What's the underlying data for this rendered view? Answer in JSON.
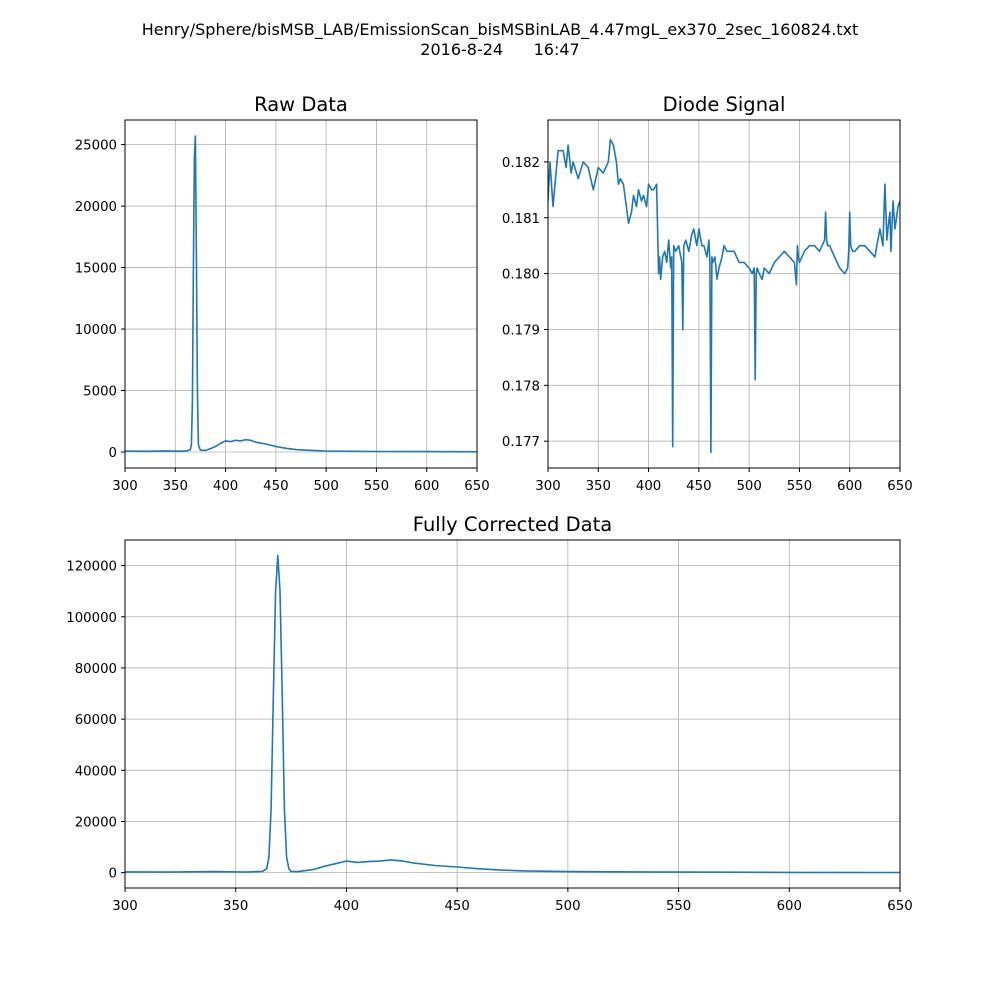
{
  "figure": {
    "title_line1": "Henry/Sphere/bisMSB_LAB/EmissionScan_bisMSBinLAB_4.47mgL_ex370_2sec_160824.txt",
    "title_line2": "2016-8-24      16:47"
  },
  "colors": {
    "line": "#1f77b4",
    "grid": "#b0b0b0"
  },
  "chart_data": [
    {
      "id": "raw",
      "type": "line",
      "title": "Raw Data",
      "xlabel": "",
      "ylabel": "",
      "xlim": [
        300,
        650
      ],
      "ylim": [
        -1300,
        27000
      ],
      "xticks": [
        300,
        350,
        400,
        450,
        500,
        550,
        600,
        650
      ],
      "yticks": [
        0,
        5000,
        10000,
        15000,
        20000,
        25000
      ],
      "grid": true,
      "series": [
        {
          "x": [
            300,
            320,
            340,
            355,
            362,
            365,
            366,
            367,
            368,
            369,
            370,
            371,
            372,
            373,
            375,
            380,
            385,
            390,
            395,
            400,
            405,
            410,
            415,
            420,
            425,
            430,
            440,
            450,
            460,
            470,
            480,
            500,
            550,
            600,
            650
          ],
          "y": [
            80,
            60,
            90,
            70,
            100,
            200,
            600,
            4000,
            15000,
            24000,
            25700,
            16000,
            5000,
            600,
            150,
            130,
            280,
            450,
            700,
            900,
            850,
            950,
            900,
            1000,
            950,
            800,
            650,
            450,
            300,
            200,
            150,
            80,
            40,
            30,
            20
          ]
        }
      ]
    },
    {
      "id": "diode",
      "type": "line",
      "title": "Diode Signal",
      "xlabel": "",
      "ylabel": "",
      "xlim": [
        300,
        650
      ],
      "ylim": [
        0.17652,
        0.18275
      ],
      "xticks": [
        300,
        350,
        400,
        450,
        500,
        550,
        600,
        650
      ],
      "yticks": [
        0.177,
        0.178,
        0.179,
        0.18,
        0.181,
        0.182
      ],
      "grid": true,
      "series": [
        {
          "x": [
            300,
            302,
            305,
            308,
            310,
            315,
            318,
            320,
            323,
            325,
            330,
            335,
            340,
            345,
            350,
            355,
            360,
            362,
            365,
            368,
            370,
            372,
            375,
            378,
            380,
            383,
            385,
            388,
            390,
            393,
            395,
            398,
            400,
            403,
            405,
            408,
            410,
            411,
            412,
            414,
            416,
            418,
            420,
            422,
            423,
            424,
            425,
            427,
            430,
            433,
            434,
            435,
            437,
            440,
            443,
            445,
            448,
            450,
            453,
            455,
            458,
            460,
            461,
            462,
            463,
            464,
            466,
            468,
            470,
            473,
            475,
            478,
            480,
            485,
            490,
            495,
            500,
            503,
            505,
            506,
            507,
            508,
            510,
            513,
            515,
            520,
            525,
            530,
            535,
            540,
            545,
            547,
            548,
            549,
            550,
            555,
            560,
            565,
            570,
            575,
            576,
            577,
            578,
            580,
            585,
            590,
            595,
            598,
            599,
            600,
            601,
            603,
            605,
            610,
            615,
            620,
            625,
            630,
            633,
            635,
            637,
            638,
            640,
            641,
            643,
            645,
            648,
            650
          ],
          "y": [
            0.1813,
            0.182,
            0.1812,
            0.1818,
            0.1822,
            0.1822,
            0.1819,
            0.1823,
            0.1818,
            0.182,
            0.1817,
            0.182,
            0.1819,
            0.1815,
            0.1819,
            0.1818,
            0.182,
            0.1824,
            0.1823,
            0.182,
            0.1816,
            0.1817,
            0.1816,
            0.1812,
            0.1809,
            0.1811,
            0.1814,
            0.1812,
            0.1815,
            0.1813,
            0.1814,
            0.1812,
            0.1816,
            0.1815,
            0.1815,
            0.1816,
            0.18,
            0.1803,
            0.1799,
            0.1803,
            0.1804,
            0.1802,
            0.1806,
            0.1801,
            0.1803,
            0.1769,
            0.1805,
            0.1804,
            0.1805,
            0.1802,
            0.179,
            0.1805,
            0.1806,
            0.1804,
            0.1807,
            0.1808,
            0.1805,
            0.1808,
            0.1805,
            0.1805,
            0.1803,
            0.1806,
            0.1802,
            0.1768,
            0.1803,
            0.1802,
            0.1803,
            0.1799,
            0.1801,
            0.1803,
            0.1805,
            0.1804,
            0.1804,
            0.1804,
            0.1802,
            0.1802,
            0.1801,
            0.18,
            0.1801,
            0.1781,
            0.18,
            0.1801,
            0.18,
            0.1799,
            0.1801,
            0.18,
            0.1802,
            0.1803,
            0.1804,
            0.1803,
            0.1802,
            0.1798,
            0.1805,
            0.1803,
            0.1802,
            0.1804,
            0.1805,
            0.1805,
            0.1804,
            0.1806,
            0.1811,
            0.1806,
            0.1805,
            0.1805,
            0.1803,
            0.1801,
            0.18,
            0.1801,
            0.1804,
            0.1811,
            0.1805,
            0.1804,
            0.1804,
            0.1805,
            0.1805,
            0.1804,
            0.1803,
            0.1808,
            0.1805,
            0.1816,
            0.1806,
            0.1808,
            0.1811,
            0.1804,
            0.1813,
            0.1808,
            0.1812,
            0.1813
          ]
        }
      ]
    },
    {
      "id": "corrected",
      "type": "line",
      "title": "Fully Corrected Data",
      "xlabel": "",
      "ylabel": "",
      "xlim": [
        300,
        650
      ],
      "ylim": [
        -6000,
        130000
      ],
      "xticks": [
        300,
        350,
        400,
        450,
        500,
        550,
        600,
        650
      ],
      "yticks": [
        0,
        20000,
        40000,
        60000,
        80000,
        100000,
        120000
      ],
      "grid": true,
      "series": [
        {
          "x": [
            300,
            320,
            340,
            355,
            362,
            364,
            365,
            366,
            367,
            368,
            369,
            370,
            371,
            372,
            373,
            374,
            375,
            378,
            380,
            385,
            390,
            395,
            400,
            405,
            410,
            415,
            420,
            425,
            430,
            440,
            450,
            460,
            470,
            480,
            500,
            550,
            600,
            650
          ],
          "y": [
            300,
            200,
            400,
            250,
            500,
            1500,
            6000,
            25000,
            70000,
            110000,
            124000,
            110000,
            70000,
            25000,
            6000,
            1500,
            500,
            400,
            600,
            1200,
            2500,
            3500,
            4500,
            4000,
            4300,
            4500,
            5000,
            4600,
            3800,
            2800,
            2200,
            1500,
            1000,
            700,
            400,
            200,
            100,
            50
          ]
        }
      ]
    }
  ]
}
